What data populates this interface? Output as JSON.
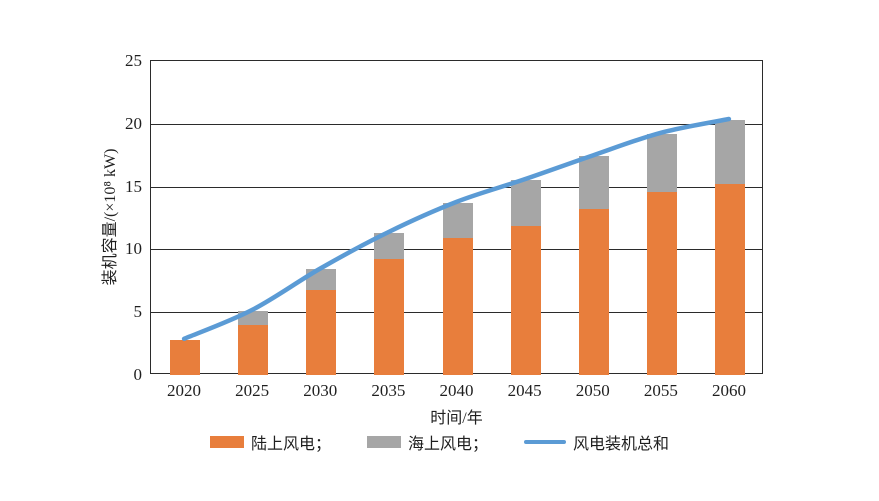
{
  "chart_data": {
    "type": "bar",
    "subtype": "stacked-bars-with-line",
    "categories": [
      "2020",
      "2025",
      "2030",
      "2035",
      "2040",
      "2045",
      "2050",
      "2055",
      "2060"
    ],
    "series": [
      {
        "name": "陆上风电",
        "type": "bar",
        "stacked": true,
        "color": "#E87E3C",
        "values": [
          2.8,
          4.0,
          6.8,
          9.2,
          10.9,
          11.9,
          13.2,
          14.6,
          15.2
        ]
      },
      {
        "name": "海上风电",
        "type": "bar",
        "stacked": true,
        "color": "#A6A6A6",
        "values": [
          0,
          1.1,
          1.6,
          2.1,
          2.8,
          3.6,
          4.2,
          4.6,
          5.1
        ]
      },
      {
        "name": "风电装机总和",
        "type": "line",
        "color": "#5B9BD5",
        "values": [
          2.8,
          5.1,
          8.4,
          11.3,
          13.7,
          15.5,
          17.4,
          19.2,
          20.3
        ]
      }
    ],
    "title": "",
    "xlabel": "时间/年",
    "ylabel": "装机容量/(×10⁸ kW)",
    "ylim": [
      0,
      25
    ],
    "yticks": [
      0,
      5,
      10,
      15,
      20,
      25
    ],
    "grid": "horizontal",
    "plot_border": "box",
    "legend_position": "bottom",
    "legend": [
      {
        "label": "陆上风电；",
        "color": "#E87E3C",
        "marker": "box"
      },
      {
        "label": "海上风电；",
        "color": "#A6A6A6",
        "marker": "box"
      },
      {
        "label": "风电装机总和",
        "color": "#5B9BD5",
        "marker": "line"
      }
    ]
  }
}
